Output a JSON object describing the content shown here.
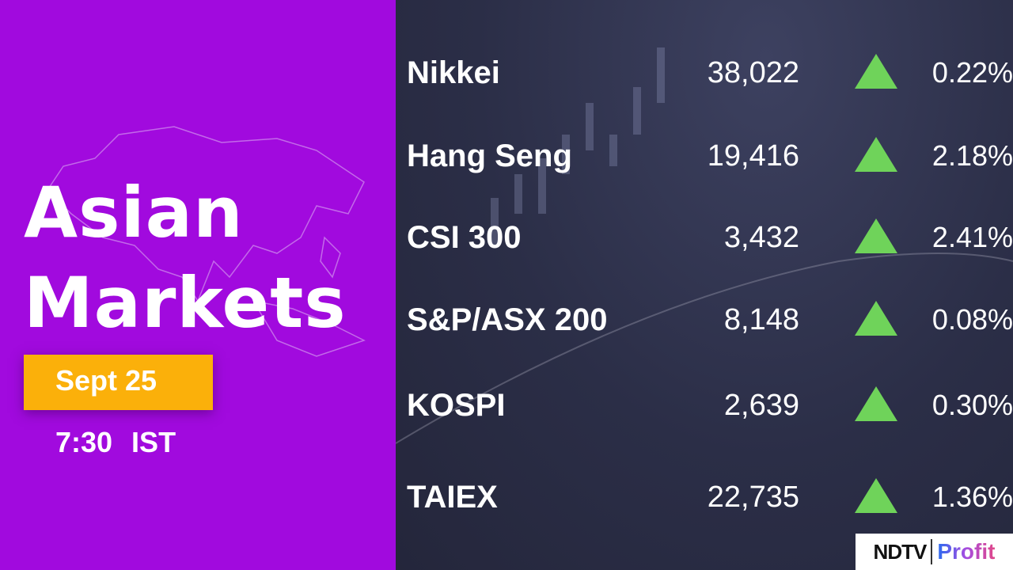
{
  "headline": {
    "line1": "Asian",
    "line2": "Markets"
  },
  "date": "Sept 25",
  "time": "7:30 IST",
  "markets": [
    {
      "name": "Nikkei",
      "value": "38,022",
      "direction": "up",
      "change": "0.22%"
    },
    {
      "name": "Hang Seng",
      "value": "19,416",
      "direction": "up",
      "change": "2.18%"
    },
    {
      "name": "CSI 300",
      "value": "3,432",
      "direction": "up",
      "change": "2.41%"
    },
    {
      "name": "S&P/ASX 200",
      "value": "8,148",
      "direction": "up",
      "change": "0.08%"
    },
    {
      "name": "KOSPI",
      "value": "2,639",
      "direction": "up",
      "change": "0.30%"
    },
    {
      "name": "TAIEX",
      "value": "22,735",
      "direction": "up",
      "change": "1.36%"
    }
  ],
  "logo": {
    "brand": "NDTV",
    "product": "Profit"
  },
  "colors": {
    "background_left": "#a10ade",
    "background_right": "#2b2e47",
    "date_badge": "#fbb00a",
    "up_arrow": "#6fd35a"
  }
}
